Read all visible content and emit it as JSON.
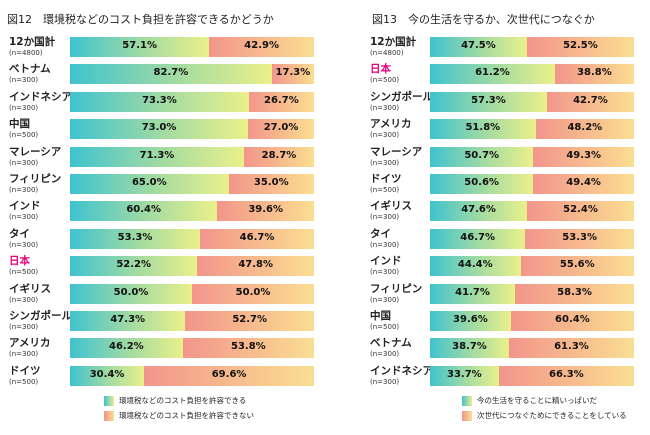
{
  "chart_data": [
    {
      "type": "bar",
      "stacked": true,
      "orientation": "horizontal",
      "title": "図12　環境税などのコスト負担を許容できるかどうか",
      "categories": [
        "12か国計",
        "ベトナム",
        "インドネシア",
        "中国",
        "マレーシア",
        "フィリピン",
        "インド",
        "タイ",
        "日本",
        "イギリス",
        "シンガポール",
        "アメリカ",
        "ドイツ"
      ],
      "sample_sizes": [
        "(n=4800)",
        "(n=300)",
        "(n=300)",
        "(n=500)",
        "(n=300)",
        "(n=300)",
        "(n=300)",
        "(n=300)",
        "(n=500)",
        "(n=300)",
        "(n=300)",
        "(n=300)",
        "(n=500)"
      ],
      "highlight": [
        "日本"
      ],
      "series": [
        {
          "name": "環境税などのコスト負担を許容できる",
          "values": [
            57.1,
            82.7,
            73.3,
            73.0,
            71.3,
            65.0,
            60.4,
            53.3,
            52.2,
            50.0,
            47.3,
            46.2,
            30.4
          ]
        },
        {
          "name": "環境税などのコスト負担を許容できない",
          "values": [
            42.9,
            17.3,
            26.7,
            27.0,
            28.7,
            35.0,
            39.6,
            46.7,
            47.8,
            50.0,
            52.7,
            53.8,
            69.6
          ]
        }
      ],
      "value_suffix": "%",
      "colors": {
        "series_a": [
          "#3fc3cf",
          "#eaf08a"
        ],
        "series_b": [
          "#f2958c",
          "#fbde92"
        ],
        "highlight": "#e4007f"
      }
    },
    {
      "type": "bar",
      "stacked": true,
      "orientation": "horizontal",
      "title": "図13　今の生活を守るか、次世代につなぐか",
      "categories": [
        "12か国計",
        "日本",
        "シンガポール",
        "アメリカ",
        "マレーシア",
        "ドイツ",
        "イギリス",
        "タイ",
        "インド",
        "フィリピン",
        "中国",
        "ベトナム",
        "インドネシア"
      ],
      "sample_sizes": [
        "(n=4800)",
        "(n=500)",
        "(n=300)",
        "(n=300)",
        "(n=300)",
        "(n=500)",
        "(n=300)",
        "(n=300)",
        "(n=300)",
        "(n=300)",
        "(n=500)",
        "(n=300)",
        "(n=300)"
      ],
      "highlight": [
        "日本"
      ],
      "series": [
        {
          "name": "今の生活を守ることに精いっぱいだ",
          "values": [
            47.5,
            61.2,
            57.3,
            51.8,
            50.7,
            50.6,
            47.6,
            46.7,
            44.4,
            41.7,
            39.6,
            38.7,
            33.7
          ]
        },
        {
          "name": "次世代につなぐためにできることをしている",
          "values": [
            52.5,
            38.8,
            42.7,
            48.2,
            49.3,
            49.4,
            52.4,
            53.3,
            55.6,
            58.3,
            60.4,
            61.3,
            66.3
          ]
        }
      ],
      "value_suffix": "%",
      "colors": {
        "series_a": [
          "#3fc3cf",
          "#eaf08a"
        ],
        "series_b": [
          "#f2958c",
          "#fbde92"
        ],
        "highlight": "#e4007f"
      }
    }
  ]
}
